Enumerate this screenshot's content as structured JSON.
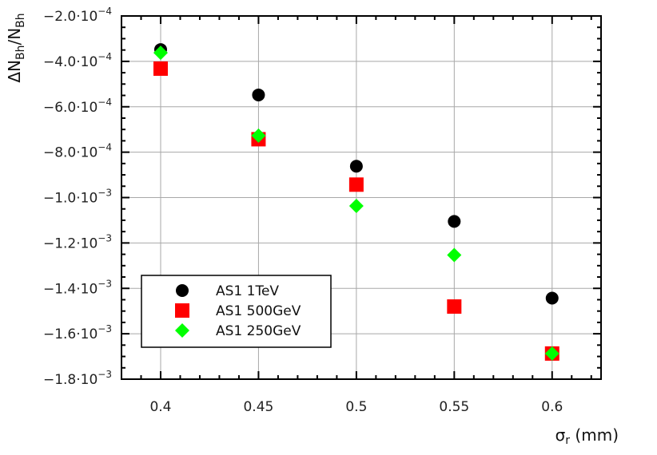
{
  "chart_data": {
    "type": "scatter",
    "title": "",
    "xlabel": "σr (mm)",
    "ylabel": "ΔNBh/NBh",
    "xlim": [
      0.38,
      0.625
    ],
    "ylim": [
      -0.0018,
      -0.0002
    ],
    "x_ticks": [
      0.4,
      0.45,
      0.5,
      0.55,
      0.6
    ],
    "x_tick_labels": [
      "0.4",
      "0.45",
      "0.5",
      "0.55",
      "0.6"
    ],
    "y_ticks": [
      -0.0002,
      -0.0004,
      -0.0006,
      -0.0008,
      -0.001,
      -0.0012,
      -0.0014,
      -0.0016,
      -0.0018
    ],
    "y_tick_labels": [
      {
        "mant": "−2.0·10",
        "exp": "−4"
      },
      {
        "mant": "−4.0·10",
        "exp": "−4"
      },
      {
        "mant": "−6.0·10",
        "exp": "−4"
      },
      {
        "mant": "−8.0·10",
        "exp": "−4"
      },
      {
        "mant": "−1.0·10",
        "exp": "−3"
      },
      {
        "mant": "−1.2·10",
        "exp": "−3"
      },
      {
        "mant": "−1.4·10",
        "exp": "−3"
      },
      {
        "mant": "−1.6·10",
        "exp": "−3"
      },
      {
        "mant": "−1.8·10",
        "exp": "−3"
      }
    ],
    "grid": true,
    "legend_position": "lower-left",
    "x": [
      0.4,
      0.45,
      0.5,
      0.55,
      0.6
    ],
    "series": [
      {
        "name": "AS1 1TeV",
        "marker": "circle",
        "color": "#000000",
        "values": [
          -0.000348,
          -0.000548,
          -0.000862,
          -0.001105,
          -0.001443
        ]
      },
      {
        "name": "AS1 500GeV",
        "marker": "square",
        "color": "#ff0000",
        "values": [
          -0.000432,
          -0.000743,
          -0.000943,
          -0.00148,
          -0.001687
        ]
      },
      {
        "name": "AS1 250GeV",
        "marker": "diamond",
        "color": "#00ff00",
        "values": [
          -0.000362,
          -0.000727,
          -0.001037,
          -0.001253,
          -0.001687
        ]
      }
    ]
  }
}
